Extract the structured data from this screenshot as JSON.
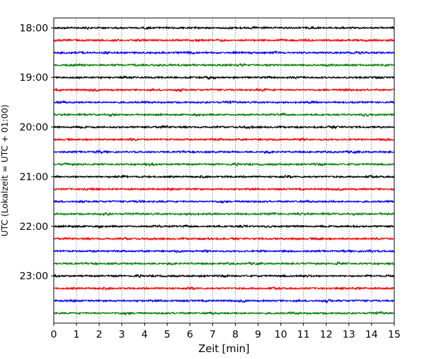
{
  "chart_data": {
    "type": "line",
    "title": "",
    "xlabel": "Zeit  [min]",
    "ylabel": "UTC (Lokalzeit = UTC + 01:00)",
    "xlim": [
      0,
      15
    ],
    "x_ticks": [
      "0",
      "1",
      "2",
      "3",
      "4",
      "5",
      "6",
      "7",
      "8",
      "9",
      "10",
      "11",
      "12",
      "13",
      "14",
      "15"
    ],
    "y_tick_labels": [
      "18:00",
      "19:00",
      "20:00",
      "21:00",
      "22:00",
      "23:00"
    ],
    "ylim_minutes_after_1800": [
      -12,
      357
    ],
    "grid": "vertical dotted at each minute",
    "trace_interval_min": 15,
    "first_trace_time": "18:00",
    "trace_count": 24,
    "trace_colors": [
      "#000000",
      "#ff0000",
      "#0000ff",
      "#007f00"
    ],
    "series_description": "seismic noise traces, one per 15 minutes, cycling black/red/blue/green"
  }
}
